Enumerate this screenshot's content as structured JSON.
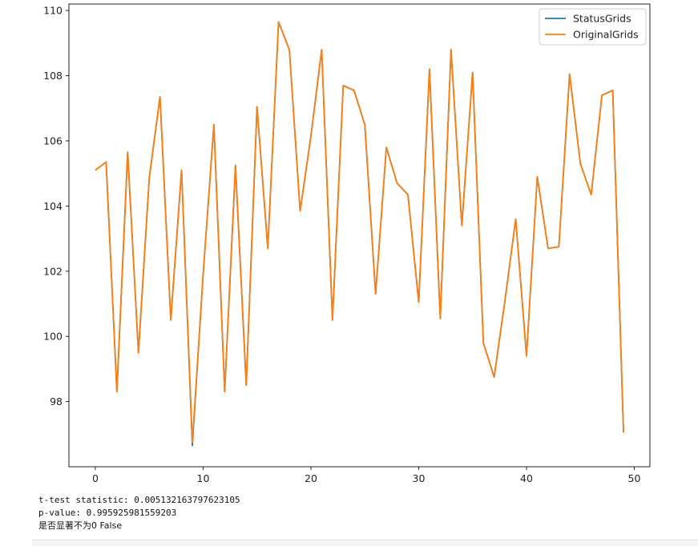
{
  "chart_data": {
    "type": "line",
    "x": [
      0,
      1,
      2,
      3,
      4,
      5,
      6,
      7,
      8,
      9,
      10,
      11,
      12,
      13,
      14,
      15,
      16,
      17,
      18,
      19,
      20,
      21,
      22,
      23,
      24,
      25,
      26,
      27,
      28,
      29,
      30,
      31,
      32,
      33,
      34,
      35,
      36,
      37,
      38,
      39,
      40,
      41,
      42,
      43,
      44,
      45,
      46,
      47,
      48,
      49
    ],
    "series": [
      {
        "name": "StatusGrids",
        "color": "#1f77b4",
        "values": [
          105.1,
          105.35,
          98.3,
          105.65,
          99.5,
          104.85,
          107.35,
          100.5,
          105.1,
          96.65,
          101.9,
          106.5,
          98.3,
          105.25,
          98.5,
          107.05,
          102.7,
          109.65,
          108.8,
          103.85,
          106.15,
          108.8,
          100.5,
          107.7,
          107.55,
          106.5,
          101.3,
          105.8,
          104.7,
          104.35,
          101.05,
          108.2,
          100.55,
          108.8,
          103.4,
          108.1,
          99.8,
          98.75,
          101.1,
          103.6,
          99.4,
          104.9,
          102.7,
          102.75,
          108.05,
          105.3,
          104.35,
          107.4,
          107.55,
          97.05
        ]
      },
      {
        "name": "OriginalGrids",
        "color": "#ff7f0e",
        "values": [
          105.1,
          105.35,
          98.3,
          105.65,
          99.5,
          104.85,
          107.35,
          100.5,
          105.1,
          96.75,
          101.9,
          106.5,
          98.3,
          105.25,
          98.5,
          107.05,
          102.7,
          109.65,
          108.8,
          103.85,
          106.15,
          108.8,
          100.5,
          107.7,
          107.55,
          106.5,
          101.3,
          105.8,
          104.7,
          104.35,
          101.05,
          108.2,
          100.55,
          108.8,
          103.4,
          108.1,
          99.8,
          98.75,
          101.1,
          103.6,
          99.4,
          104.9,
          102.7,
          102.75,
          108.05,
          105.3,
          104.35,
          107.4,
          107.55,
          97.05
        ]
      }
    ],
    "xticks": [
      0,
      10,
      20,
      30,
      40,
      50
    ],
    "yticks": [
      98,
      100,
      102,
      104,
      106,
      108,
      110
    ],
    "xlim": [
      -2.45,
      51.45
    ],
    "ylim": [
      96.0,
      110.2
    ],
    "legend_placement": "top-right",
    "grid": false,
    "title": "",
    "xlabel": "",
    "ylabel": ""
  },
  "output": {
    "line1": "t-test statistic: 0.005132163797623105",
    "line2": "p-value: 0.995925981559203",
    "line3": "是否显著不为0 False"
  }
}
